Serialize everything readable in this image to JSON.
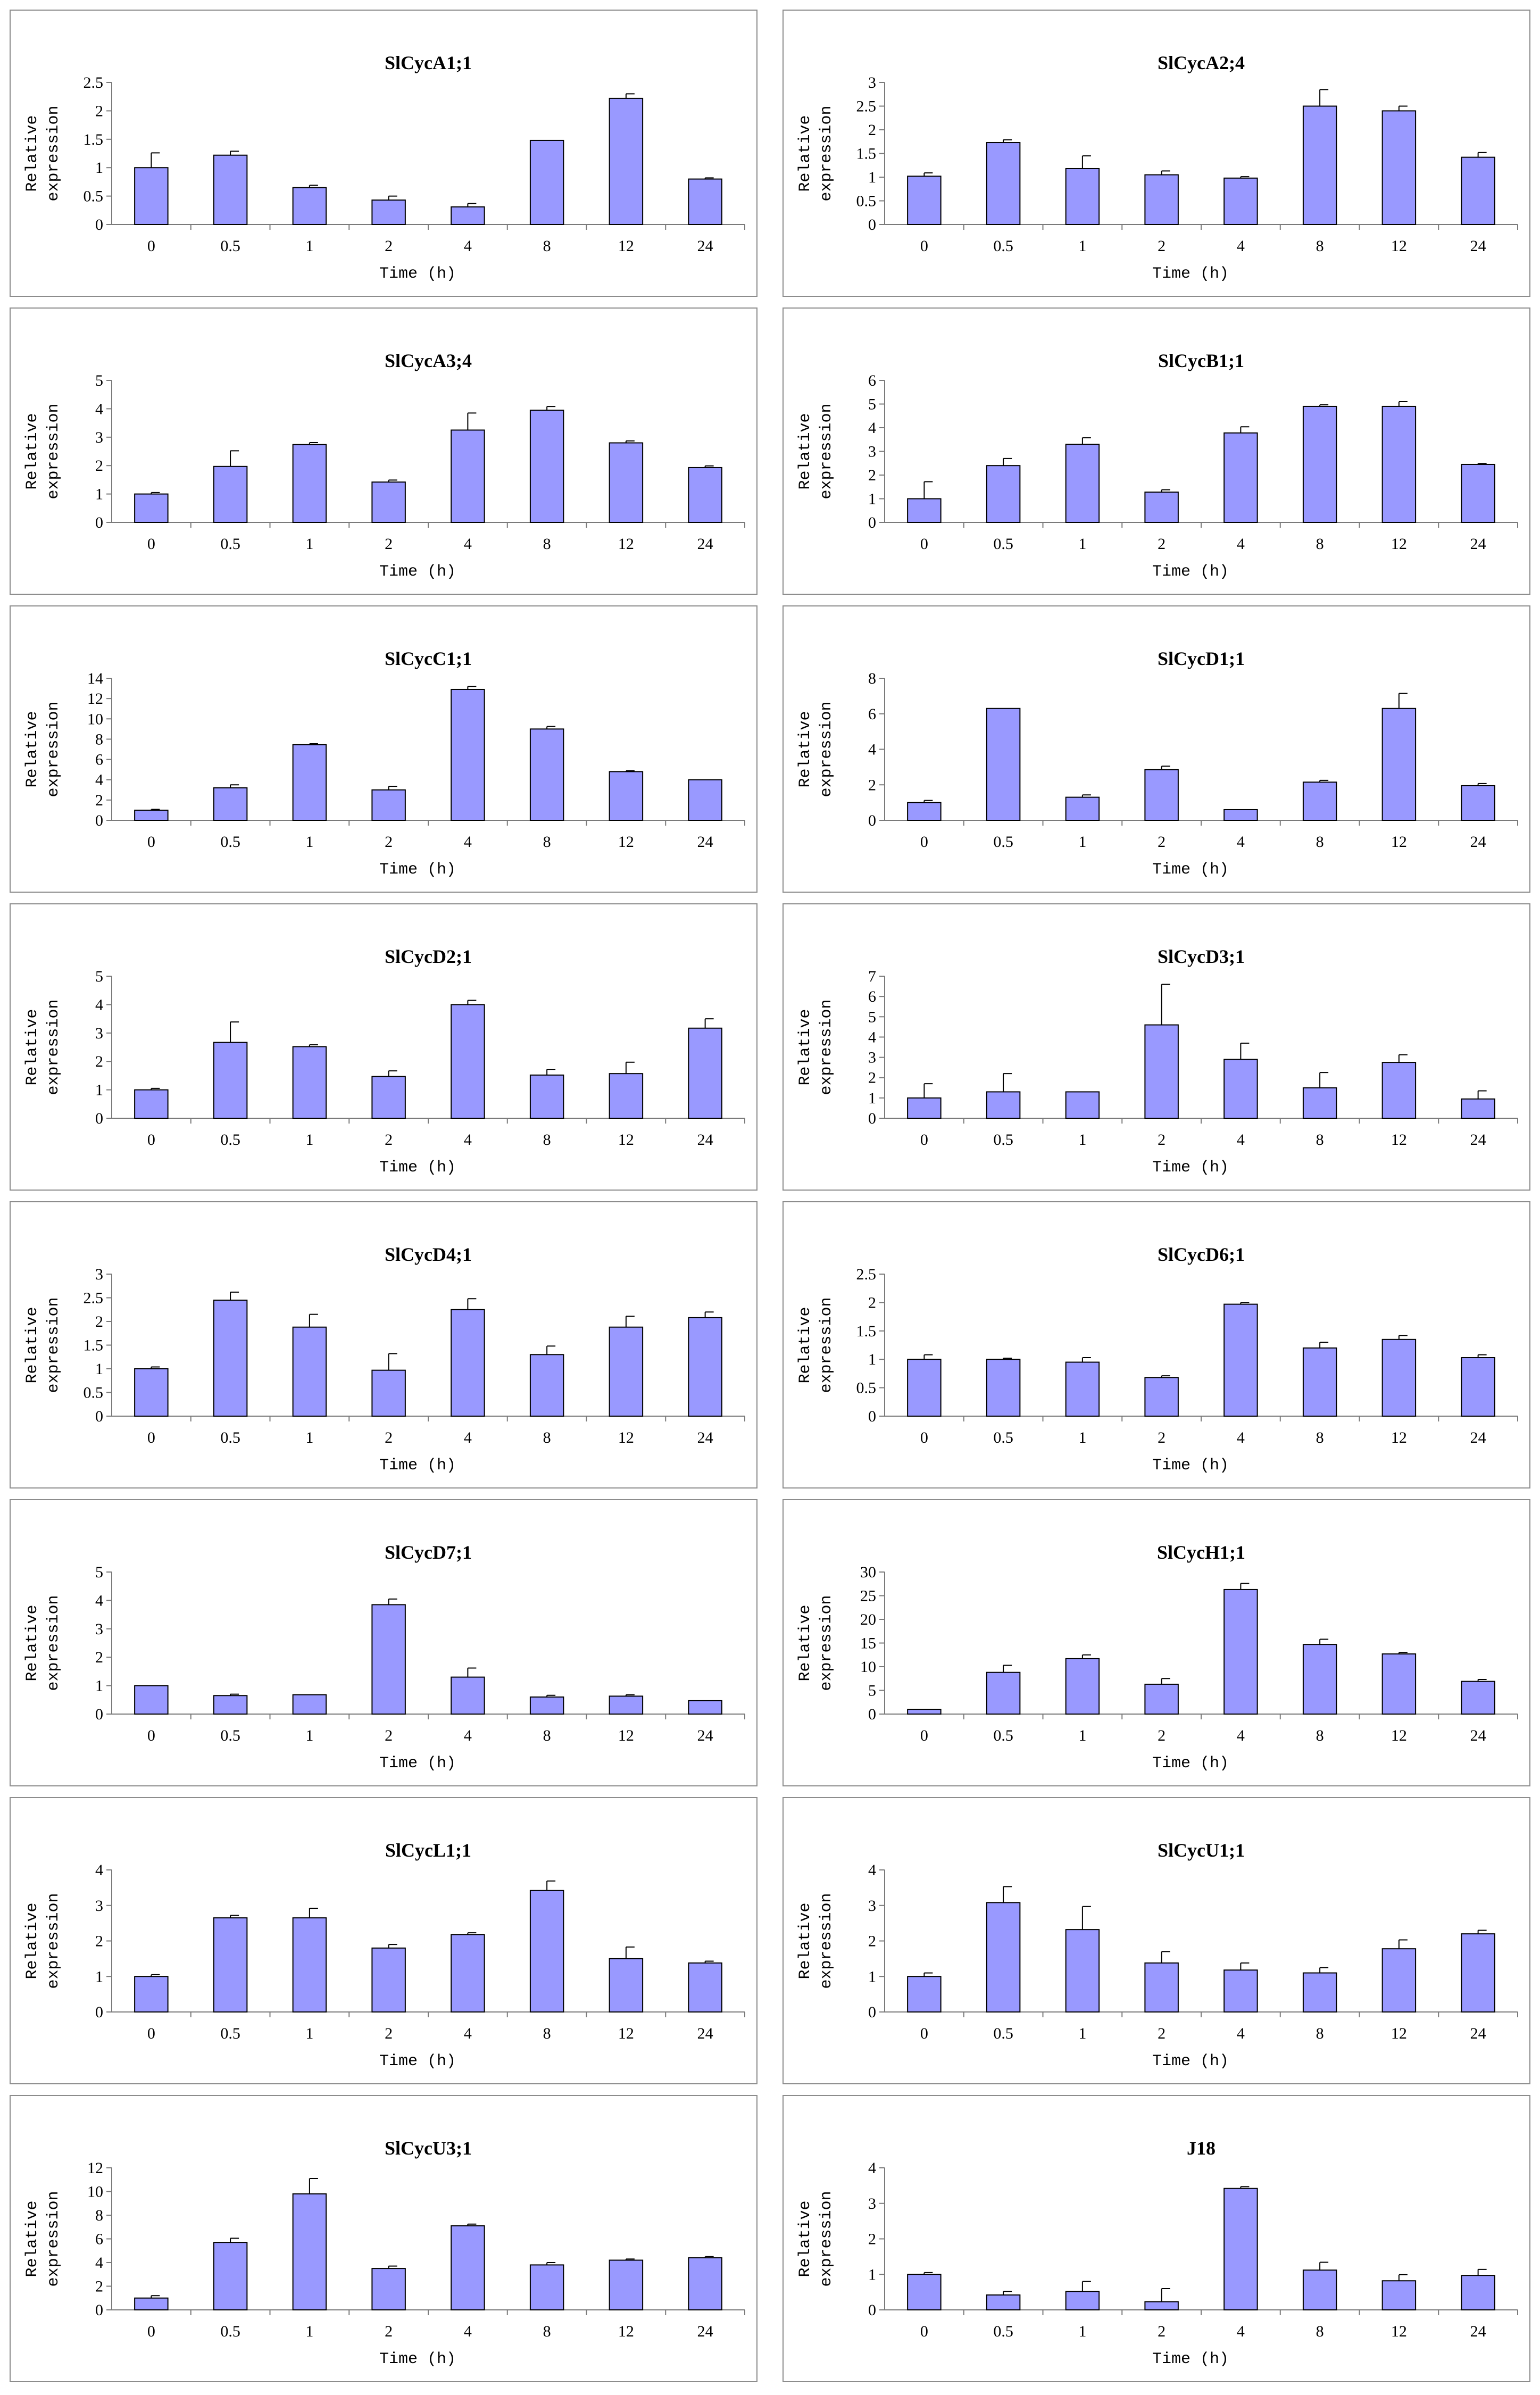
{
  "chart_data": [
    {
      "type": "bar",
      "title": "SlCycA1;1",
      "xlabel": "Time (h)",
      "ylabel": [
        "Relative",
        "expression"
      ],
      "categories": [
        "0",
        "0.5",
        "1",
        "2",
        "4",
        "8",
        "12",
        "24"
      ],
      "values": [
        1.0,
        1.22,
        0.65,
        0.43,
        0.31,
        1.48,
        2.22,
        0.8
      ],
      "errors": [
        0.26,
        0.07,
        0.04,
        0.07,
        0.06,
        0.0,
        0.08,
        0.02
      ],
      "ylim": [
        0,
        2.5
      ],
      "yticks": [
        "0",
        "0.5",
        "1",
        "1.5",
        "2",
        "2.5"
      ]
    },
    {
      "type": "bar",
      "title": "SlCycA2;4",
      "xlabel": "Time (h)",
      "ylabel": [
        "Relative",
        "expression"
      ],
      "categories": [
        "0",
        "0.5",
        "1",
        "2",
        "4",
        "8",
        "12",
        "24"
      ],
      "values": [
        1.02,
        1.73,
        1.18,
        1.05,
        0.98,
        2.5,
        2.4,
        1.42
      ],
      "errors": [
        0.07,
        0.06,
        0.27,
        0.08,
        0.03,
        0.35,
        0.1,
        0.1
      ],
      "ylim": [
        0,
        3
      ],
      "yticks": [
        "0",
        "0.5",
        "1",
        "1.5",
        "2",
        "2.5",
        "3"
      ]
    },
    {
      "type": "bar",
      "title": "SlCycA3;4",
      "xlabel": "Time (h)",
      "ylabel": [
        "Relative",
        "expression"
      ],
      "categories": [
        "0",
        "0.5",
        "1",
        "2",
        "4",
        "8",
        "12",
        "24"
      ],
      "values": [
        1.0,
        1.97,
        2.74,
        1.42,
        3.25,
        3.95,
        2.8,
        1.93
      ],
      "errors": [
        0.05,
        0.55,
        0.07,
        0.07,
        0.6,
        0.13,
        0.07,
        0.06
      ],
      "ylim": [
        0,
        5
      ],
      "yticks": [
        "0",
        "1",
        "2",
        "3",
        "4",
        "5"
      ]
    },
    {
      "type": "bar",
      "title": "SlCycB1;1",
      "xlabel": "Time (h)",
      "ylabel": [
        "Relative",
        "expression"
      ],
      "categories": [
        "0",
        "0.5",
        "1",
        "2",
        "4",
        "8",
        "12",
        "24"
      ],
      "values": [
        1.0,
        2.4,
        3.3,
        1.28,
        3.78,
        4.9,
        4.9,
        2.45
      ],
      "errors": [
        0.72,
        0.3,
        0.28,
        0.1,
        0.26,
        0.07,
        0.2,
        0.04
      ],
      "ylim": [
        0,
        6
      ],
      "yticks": [
        "0",
        "1",
        "2",
        "3",
        "4",
        "5",
        "6"
      ]
    },
    {
      "type": "bar",
      "title": "SlCycC1;1",
      "xlabel": "Time (h)",
      "ylabel": [
        "Relative",
        "expression"
      ],
      "categories": [
        "0",
        "0.5",
        "1",
        "2",
        "4",
        "8",
        "12",
        "24"
      ],
      "values": [
        1.0,
        3.2,
        7.45,
        3.0,
        12.9,
        9.0,
        4.8,
        4.0
      ],
      "errors": [
        0.08,
        0.3,
        0.1,
        0.35,
        0.3,
        0.25,
        0.08,
        0.0
      ],
      "ylim": [
        0,
        14
      ],
      "yticks": [
        "0",
        "2",
        "4",
        "6",
        "8",
        "10",
        "12",
        "14"
      ]
    },
    {
      "type": "bar",
      "title": "SlCycD1;1",
      "xlabel": "Time (h)",
      "ylabel": [
        "Relative",
        "expression"
      ],
      "categories": [
        "0",
        "0.5",
        "1",
        "2",
        "4",
        "8",
        "12",
        "24"
      ],
      "values": [
        1.0,
        6.3,
        1.3,
        2.85,
        0.6,
        2.15,
        6.3,
        1.95
      ],
      "errors": [
        0.12,
        0.0,
        0.13,
        0.2,
        0.0,
        0.1,
        0.85,
        0.12
      ],
      "ylim": [
        0,
        8
      ],
      "yticks": [
        "0",
        "2",
        "4",
        "6",
        "8"
      ]
    },
    {
      "type": "bar",
      "title": "SlCycD2;1",
      "xlabel": "Time (h)",
      "ylabel": [
        "Relative",
        "expression"
      ],
      "categories": [
        "0",
        "0.5",
        "1",
        "2",
        "4",
        "8",
        "12",
        "24"
      ],
      "values": [
        1.0,
        2.67,
        2.52,
        1.47,
        4.0,
        1.52,
        1.57,
        3.17
      ],
      "errors": [
        0.05,
        0.72,
        0.07,
        0.2,
        0.15,
        0.2,
        0.4,
        0.33
      ],
      "ylim": [
        0,
        5
      ],
      "yticks": [
        "0",
        "1",
        "2",
        "3",
        "4",
        "5"
      ]
    },
    {
      "type": "bar",
      "title": "SlCycD3;1",
      "xlabel": "Time (h)",
      "ylabel": [
        "Relative",
        "expression"
      ],
      "categories": [
        "0",
        "0.5",
        "1",
        "2",
        "4",
        "8",
        "12",
        "24"
      ],
      "values": [
        1.0,
        1.3,
        1.3,
        4.6,
        2.9,
        1.5,
        2.75,
        0.95
      ],
      "errors": [
        0.7,
        0.9,
        0.0,
        2.0,
        0.8,
        0.75,
        0.38,
        0.4
      ],
      "ylim": [
        0,
        7
      ],
      "yticks": [
        "0",
        "1",
        "2",
        "3",
        "4",
        "5",
        "6",
        "7"
      ]
    },
    {
      "type": "bar",
      "title": "SlCycD4;1",
      "xlabel": "Time (h)",
      "ylabel": [
        "Relative",
        "expression"
      ],
      "categories": [
        "0",
        "0.5",
        "1",
        "2",
        "4",
        "8",
        "12",
        "24"
      ],
      "values": [
        1.0,
        2.45,
        1.88,
        0.97,
        2.25,
        1.3,
        1.88,
        2.08
      ],
      "errors": [
        0.04,
        0.17,
        0.27,
        0.35,
        0.23,
        0.18,
        0.23,
        0.12
      ],
      "ylim": [
        0,
        3
      ],
      "yticks": [
        "0",
        "0.5",
        "1",
        "1.5",
        "2",
        "2.5",
        "3"
      ]
    },
    {
      "type": "bar",
      "title": "SlCycD6;1",
      "xlabel": "Time (h)",
      "ylabel": [
        "Relative",
        "expression"
      ],
      "categories": [
        "0",
        "0.5",
        "1",
        "2",
        "4",
        "8",
        "12",
        "24"
      ],
      "values": [
        1.0,
        1.0,
        0.95,
        0.68,
        1.97,
        1.2,
        1.35,
        1.03
      ],
      "errors": [
        0.08,
        0.02,
        0.08,
        0.03,
        0.03,
        0.1,
        0.07,
        0.05
      ],
      "ylim": [
        0,
        2.5
      ],
      "yticks": [
        "0",
        "0.5",
        "1",
        "1.5",
        "2",
        "2.5"
      ]
    },
    {
      "type": "bar",
      "title": "SlCycD7;1",
      "xlabel": "Time (h)",
      "ylabel": [
        "Relative",
        "expression"
      ],
      "categories": [
        "0",
        "0.5",
        "1",
        "2",
        "4",
        "8",
        "12",
        "24"
      ],
      "values": [
        1.0,
        0.65,
        0.68,
        3.85,
        1.3,
        0.6,
        0.63,
        0.47
      ],
      "errors": [
        0.0,
        0.05,
        0.0,
        0.2,
        0.32,
        0.06,
        0.05,
        0.0
      ],
      "ylim": [
        0,
        5
      ],
      "yticks": [
        "0",
        "1",
        "2",
        "3",
        "4",
        "5"
      ]
    },
    {
      "type": "bar",
      "title": "SlCycH1;1",
      "xlabel": "Time (h)",
      "ylabel": [
        "Relative",
        "expression"
      ],
      "categories": [
        "0",
        "0.5",
        "1",
        "2",
        "4",
        "8",
        "12",
        "24"
      ],
      "values": [
        1.0,
        8.8,
        11.7,
        6.3,
        26.3,
        14.7,
        12.7,
        6.9
      ],
      "errors": [
        0.0,
        1.5,
        0.8,
        1.2,
        1.3,
        1.1,
        0.3,
        0.4
      ],
      "ylim": [
        0,
        30
      ],
      "yticks": [
        "0",
        "5",
        "10",
        "15",
        "20",
        "25",
        "30"
      ]
    },
    {
      "type": "bar",
      "title": "SlCycL1;1",
      "xlabel": "Time (h)",
      "ylabel": [
        "Relative",
        "expression"
      ],
      "categories": [
        "0",
        "0.5",
        "1",
        "2",
        "4",
        "8",
        "12",
        "24"
      ],
      "values": [
        1.0,
        2.65,
        2.65,
        1.8,
        2.18,
        3.42,
        1.5,
        1.38
      ],
      "errors": [
        0.05,
        0.07,
        0.27,
        0.1,
        0.05,
        0.27,
        0.33,
        0.05
      ],
      "ylim": [
        0,
        4
      ],
      "yticks": [
        "0",
        "1",
        "2",
        "3",
        "4"
      ]
    },
    {
      "type": "bar",
      "title": "SlCycU1;1",
      "xlabel": "Time (h)",
      "ylabel": [
        "Relative",
        "expression"
      ],
      "categories": [
        "0",
        "0.5",
        "1",
        "2",
        "4",
        "8",
        "12",
        "24"
      ],
      "values": [
        1.0,
        3.08,
        2.32,
        1.38,
        1.18,
        1.1,
        1.78,
        2.2
      ],
      "errors": [
        0.1,
        0.45,
        0.65,
        0.32,
        0.2,
        0.15,
        0.25,
        0.1
      ],
      "ylim": [
        0,
        4
      ],
      "yticks": [
        "0",
        "1",
        "2",
        "3",
        "4"
      ]
    },
    {
      "type": "bar",
      "title": "SlCycU3;1",
      "xlabel": "Time (h)",
      "ylabel": [
        "Relative",
        "expression"
      ],
      "categories": [
        "0",
        "0.5",
        "1",
        "2",
        "4",
        "8",
        "12",
        "24"
      ],
      "values": [
        1.0,
        5.7,
        9.8,
        3.5,
        7.1,
        3.8,
        4.2,
        4.4
      ],
      "errors": [
        0.2,
        0.35,
        1.3,
        0.2,
        0.15,
        0.2,
        0.1,
        0.1
      ],
      "ylim": [
        0,
        12
      ],
      "yticks": [
        "0",
        "2",
        "4",
        "6",
        "8",
        "10",
        "12"
      ]
    },
    {
      "type": "bar",
      "title": "J18",
      "xlabel": "Time (h)",
      "ylabel": [
        "Relative",
        "expression"
      ],
      "categories": [
        "0",
        "0.5",
        "1",
        "2",
        "4",
        "8",
        "12",
        "24"
      ],
      "values": [
        1.0,
        0.42,
        0.52,
        0.23,
        3.42,
        1.12,
        0.82,
        0.97
      ],
      "errors": [
        0.05,
        0.1,
        0.28,
        0.37,
        0.05,
        0.22,
        0.17,
        0.17
      ],
      "ylim": [
        0,
        4
      ],
      "yticks": [
        "0",
        "1",
        "2",
        "3",
        "4"
      ]
    }
  ]
}
